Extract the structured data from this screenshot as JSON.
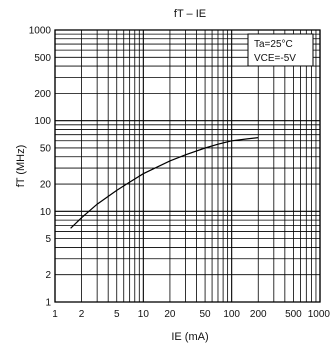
{
  "chart_data": {
    "type": "line",
    "title": "fT – IE",
    "xlabel": "IE (mA)",
    "ylabel": "fT (MHz)",
    "x_scale": "log",
    "y_scale": "log",
    "xlim": [
      1,
      1000
    ],
    "ylim": [
      1,
      1000
    ],
    "x_ticks": [
      1,
      2,
      5,
      10,
      20,
      50,
      100,
      200,
      500,
      1000
    ],
    "x_tick_labels": [
      "1",
      "2",
      "5",
      "10",
      "20",
      "50",
      "100",
      "200",
      "500",
      "1000"
    ],
    "y_ticks": [
      1,
      2,
      5,
      10,
      20,
      50,
      100,
      200,
      500,
      1000
    ],
    "y_tick_labels": [
      "1",
      "2",
      "5",
      "10",
      "20",
      "50",
      "100",
      "200",
      "500",
      "1000"
    ],
    "grid": true,
    "annotations": [
      "Ta=25°C",
      "VCE=-5V"
    ],
    "series": [
      {
        "x": [
          1.5,
          2,
          3,
          5,
          7,
          10,
          20,
          30,
          50,
          70,
          100,
          150,
          200
        ],
        "y": [
          6.5,
          8.5,
          12,
          17,
          21,
          26,
          36,
          42,
          50,
          55,
          60,
          63,
          65
        ]
      }
    ]
  }
}
